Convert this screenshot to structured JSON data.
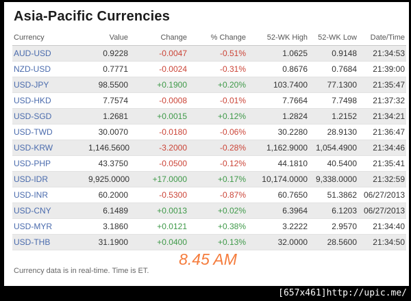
{
  "header": {
    "title": "Asia-Pacific Currencies"
  },
  "table": {
    "columns": [
      "Currency",
      "Value",
      "Change",
      "% Change",
      "52-WK High",
      "52-WK Low",
      "Date/Time"
    ],
    "rows": [
      {
        "pair": "AUD-USD",
        "value": "0.9228",
        "change": "-0.0047",
        "pct_change": "-0.51%",
        "high_52wk": "1.0625",
        "low_52wk": "0.9148",
        "datetime": "21:34:53"
      },
      {
        "pair": "NZD-USD",
        "value": "0.7771",
        "change": "-0.0024",
        "pct_change": "-0.31%",
        "high_52wk": "0.8676",
        "low_52wk": "0.7684",
        "datetime": "21:39:00"
      },
      {
        "pair": "USD-JPY",
        "value": "98.5500",
        "change": "+0.1900",
        "pct_change": "+0.20%",
        "high_52wk": "103.7400",
        "low_52wk": "77.1300",
        "datetime": "21:35:47"
      },
      {
        "pair": "USD-HKD",
        "value": "7.7574",
        "change": "-0.0008",
        "pct_change": "-0.01%",
        "high_52wk": "7.7664",
        "low_52wk": "7.7498",
        "datetime": "21:37:32"
      },
      {
        "pair": "USD-SGD",
        "value": "1.2681",
        "change": "+0.0015",
        "pct_change": "+0.12%",
        "high_52wk": "1.2824",
        "low_52wk": "1.2152",
        "datetime": "21:34:21"
      },
      {
        "pair": "USD-TWD",
        "value": "30.0070",
        "change": "-0.0180",
        "pct_change": "-0.06%",
        "high_52wk": "30.2280",
        "low_52wk": "28.9130",
        "datetime": "21:36:47"
      },
      {
        "pair": "USD-KRW",
        "value": "1,146.5600",
        "change": "-3.2000",
        "pct_change": "-0.28%",
        "high_52wk": "1,162.9000",
        "low_52wk": "1,054.4900",
        "datetime": "21:34:46"
      },
      {
        "pair": "USD-PHP",
        "value": "43.3750",
        "change": "-0.0500",
        "pct_change": "-0.12%",
        "high_52wk": "44.1810",
        "low_52wk": "40.5400",
        "datetime": "21:35:41"
      },
      {
        "pair": "USD-IDR",
        "value": "9,925.0000",
        "change": "+17.0000",
        "pct_change": "+0.17%",
        "high_52wk": "10,174.0000",
        "low_52wk": "9,338.0000",
        "datetime": "21:32:59"
      },
      {
        "pair": "USD-INR",
        "value": "60.2000",
        "change": "-0.5300",
        "pct_change": "-0.87%",
        "high_52wk": "60.7650",
        "low_52wk": "51.3862",
        "datetime": "06/27/2013"
      },
      {
        "pair": "USD-CNY",
        "value": "6.1489",
        "change": "+0.0013",
        "pct_change": "+0.02%",
        "high_52wk": "6.3964",
        "low_52wk": "6.1203",
        "datetime": "06/27/2013"
      },
      {
        "pair": "USD-MYR",
        "value": "3.1860",
        "change": "+0.0121",
        "pct_change": "+0.38%",
        "high_52wk": "3.2222",
        "low_52wk": "2.9570",
        "datetime": "21:34:40"
      },
      {
        "pair": "USD-THB",
        "value": "31.1900",
        "change": "+0.0400",
        "pct_change": "+0.13%",
        "high_52wk": "32.0000",
        "low_52wk": "28.5600",
        "datetime": "21:34:50"
      }
    ]
  },
  "footer": {
    "note": "Currency data is in real-time. Time is ET.",
    "time_annotation": "8.45 AM"
  },
  "watermark": {
    "label": "[657x461]http://upic.me/"
  },
  "colors": {
    "positive_green": "#3e9948",
    "negative_red": "#cb4437",
    "link_blue": "#4a6bad",
    "row_shade": "#ebebeb",
    "annotation_orange": "#f57c3c"
  }
}
